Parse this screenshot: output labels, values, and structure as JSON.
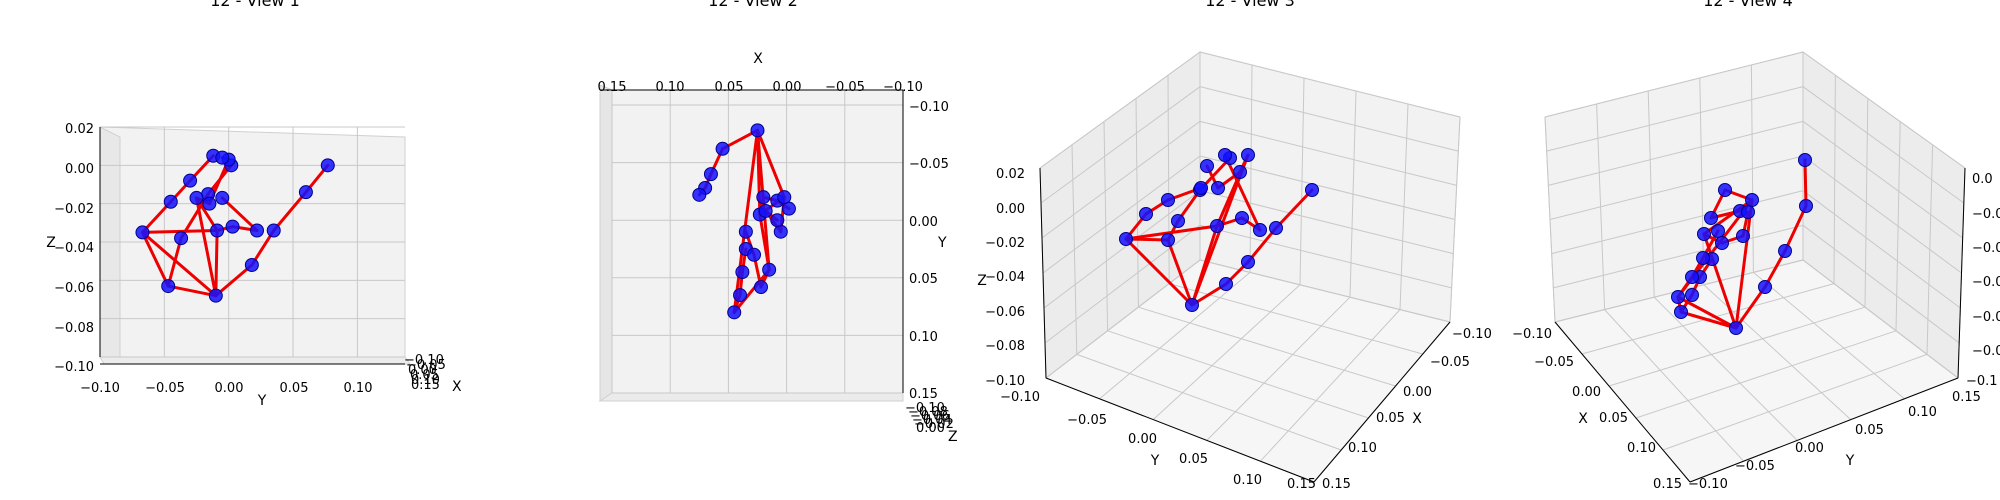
{
  "chart_data": [
    {
      "type": "3d-scatter",
      "title": "12 - View 1",
      "view": "front",
      "xlabel": "X",
      "ylabel": "Y",
      "zlabel": "Z",
      "y_ticks": [
        "−0.10",
        "−0.05",
        "0.00",
        "0.05",
        "0.10"
      ],
      "z_ticks": [
        "−0.10",
        "−0.08",
        "−0.06",
        "−0.04",
        "−0.02",
        "0.00",
        "0.02"
      ],
      "x_ticks": [
        "0.15",
        "0.10",
        "0.05",
        "0.00",
        "−0.05",
        "−0.10"
      ],
      "y_range": [
        -0.1,
        0.137
      ],
      "z_range": [
        -0.1,
        0.02
      ],
      "joint_color": "#0000ff",
      "bone_color": "#ff0000",
      "points": [
        {
          "y": -0.01,
          "z": -0.068
        },
        {
          "y": 0.018,
          "z": -0.052
        },
        {
          "y": 0.035,
          "z": -0.034
        },
        {
          "y": 0.06,
          "z": -0.014
        },
        {
          "y": 0.077,
          "z": 0.0
        },
        {
          "y": -0.047,
          "z": -0.063
        },
        {
          "y": -0.037,
          "z": -0.038
        },
        {
          "y": -0.016,
          "z": -0.015
        },
        {
          "y": 0.002,
          "z": 0.0
        },
        {
          "y": -0.067,
          "z": -0.035
        },
        {
          "y": -0.045,
          "z": -0.019
        },
        {
          "y": -0.03,
          "z": -0.008
        },
        {
          "y": -0.012,
          "z": 0.005
        },
        {
          "y": -0.009,
          "z": -0.034
        },
        {
          "y": 0.003,
          "z": -0.032
        },
        {
          "y": 0.022,
          "z": -0.034
        },
        {
          "y": -0.005,
          "z": -0.017
        },
        {
          "y": -0.025,
          "z": -0.017
        },
        {
          "y": -0.015,
          "z": -0.02
        },
        {
          "y": 0.0,
          "z": 0.003
        },
        {
          "y": -0.005,
          "z": 0.004
        }
      ]
    },
    {
      "type": "3d-scatter",
      "title": "12 - View 2",
      "view": "top",
      "xlabel": "X",
      "ylabel": "Y",
      "zlabel": "Z",
      "x_ticks": [
        "0.15",
        "0.10",
        "0.05",
        "0.00",
        "−0.05",
        "−0.10"
      ],
      "y_ticks": [
        "−0.10",
        "−0.05",
        "0.00",
        "0.05",
        "0.10",
        "0.15"
      ],
      "z_ticks": [
        "−0.10",
        "−0.08",
        "−0.06",
        "−0.04",
        "−0.02",
        "0.00",
        "0.02"
      ],
      "x_range": [
        0.15,
        -0.1
      ],
      "y_range": [
        -0.1,
        0.15
      ],
      "joint_color": "#0000ff",
      "bone_color": "#ff0000",
      "points": [
        {
          "x": 0.025,
          "y": 0.078
        },
        {
          "x": 0.055,
          "y": 0.062
        },
        {
          "x": 0.065,
          "y": 0.04
        },
        {
          "x": 0.07,
          "y": 0.028
        },
        {
          "x": 0.075,
          "y": 0.022
        },
        {
          "x": 0.045,
          "y": -0.08
        },
        {
          "x": 0.04,
          "y": -0.065
        },
        {
          "x": 0.038,
          "y": -0.045
        },
        {
          "x": 0.035,
          "y": -0.025
        },
        {
          "x": 0.015,
          "y": -0.043
        },
        {
          "x": 0.022,
          "y": -0.058
        },
        {
          "x": 0.028,
          "y": -0.03
        },
        {
          "x": 0.035,
          "y": -0.01
        },
        {
          "x": 0.023,
          "y": 0.005
        },
        {
          "x": 0.02,
          "y": 0.02
        },
        {
          "x": 0.008,
          "y": 0.017
        },
        {
          "x": -0.002,
          "y": 0.01
        },
        {
          "x": 0.002,
          "y": 0.02
        },
        {
          "x": 0.005,
          "y": -0.01
        },
        {
          "x": 0.018,
          "y": 0.008
        },
        {
          "x": 0.008,
          "y": 0.0
        }
      ]
    },
    {
      "type": "3d-scatter",
      "title": "12 - View 3",
      "view": "perspective",
      "xlabel": "X",
      "ylabel": "Y",
      "zlabel": "Z",
      "z_ticks": [
        "−0.10",
        "−0.08",
        "−0.06",
        "−0.04",
        "−0.02",
        "0.00",
        "0.02"
      ],
      "y_ticks": [
        "−0.10",
        "−0.05",
        "0.00",
        "0.05",
        "0.10",
        "0.15"
      ],
      "x_ticks": [
        "−0.10",
        "−0.05",
        "0.00",
        "0.05",
        "0.10",
        "0.15"
      ],
      "joint_color": "#0000ff",
      "bone_color": "#ff0000"
    },
    {
      "type": "3d-scatter",
      "title": "12 - View 4",
      "view": "perspective",
      "xlabel": "X",
      "ylabel": "Y",
      "zlabel": "Z",
      "x_ticks": [
        "−0.10",
        "−0.05",
        "0.00",
        "0.05",
        "0.10",
        "0.15"
      ],
      "y_ticks": [
        "−0.10",
        "−0.05",
        "0.00",
        "0.05",
        "0.10",
        "0.15"
      ],
      "z_ticks": [
        "0.0",
        "−0.0",
        "−0.0",
        "−0.0",
        "−0.0",
        "−0.0",
        "−0.1"
      ],
      "joint_color": "#0000ff",
      "bone_color": "#ff0000"
    }
  ]
}
